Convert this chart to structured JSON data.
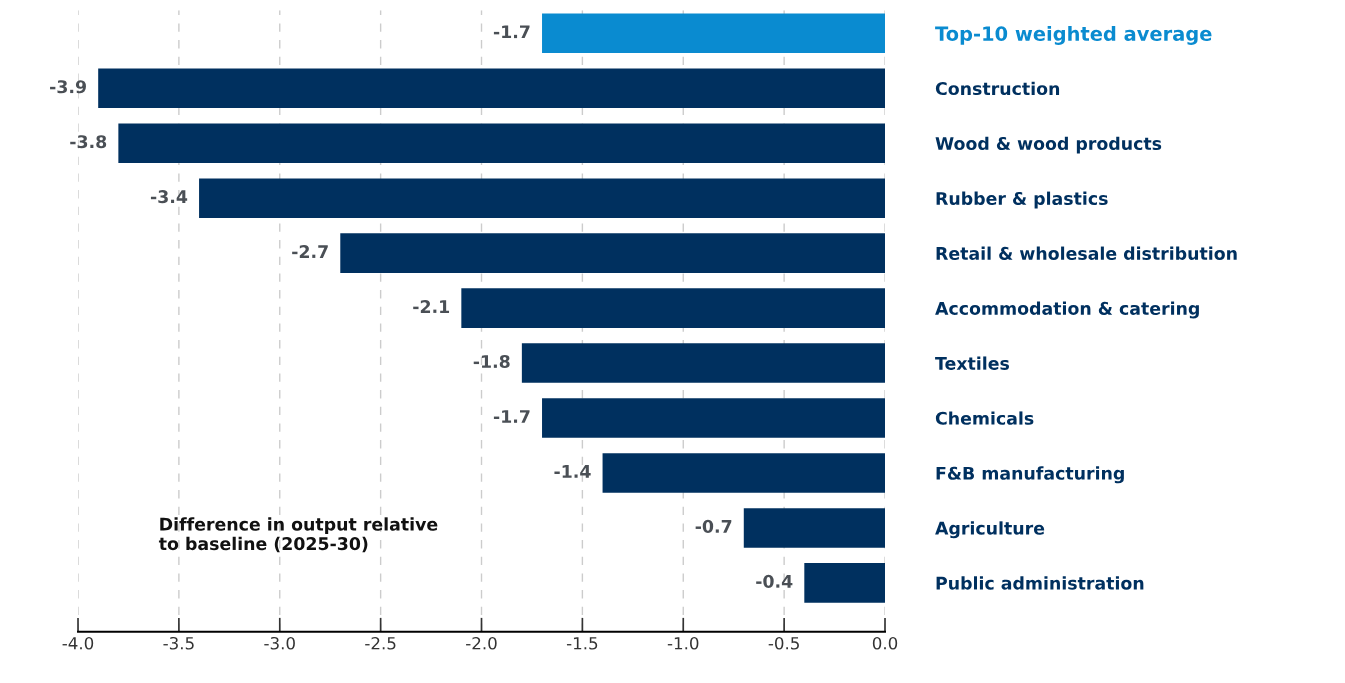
{
  "chart_data": {
    "type": "bar",
    "orientation": "horizontal",
    "categories": [
      "Top-10 weighted average",
      "Construction",
      "Wood & wood products",
      "Rubber & plastics",
      "Retail & wholesale distribution",
      "Accommodation & catering",
      "Textiles",
      "Chemicals",
      "F&B manufacturing",
      "Agriculture",
      "Public administration"
    ],
    "values": [
      -1.7,
      -3.9,
      -3.8,
      -3.4,
      -2.7,
      -2.1,
      -1.8,
      -1.7,
      -1.4,
      -0.7,
      -0.4
    ],
    "colors": [
      "#0a8bd0",
      "#00305f",
      "#00305f",
      "#00305f",
      "#00305f",
      "#00305f",
      "#00305f",
      "#00305f",
      "#00305f",
      "#00305f",
      "#00305f"
    ],
    "xlim": [
      -4.0,
      0.0
    ],
    "xticks": [
      {
        "value": -4.0,
        "label": "-4.0"
      },
      {
        "value": -3.5,
        "label": "-3.5"
      },
      {
        "value": -3.0,
        "label": "-3.0"
      },
      {
        "value": -2.5,
        "label": "-2.5"
      },
      {
        "value": -2.0,
        "label": "-2.0"
      },
      {
        "value": -1.5,
        "label": "-1.5"
      },
      {
        "value": -1.0,
        "label": "-1.0"
      },
      {
        "value": -0.5,
        "label": "-0.5"
      },
      {
        "value": 0.0,
        "label": "0.0"
      }
    ],
    "grid": "x",
    "data_labels": true,
    "annotations": [
      "Difference in output relative\nto baseline (2025-30)"
    ]
  }
}
